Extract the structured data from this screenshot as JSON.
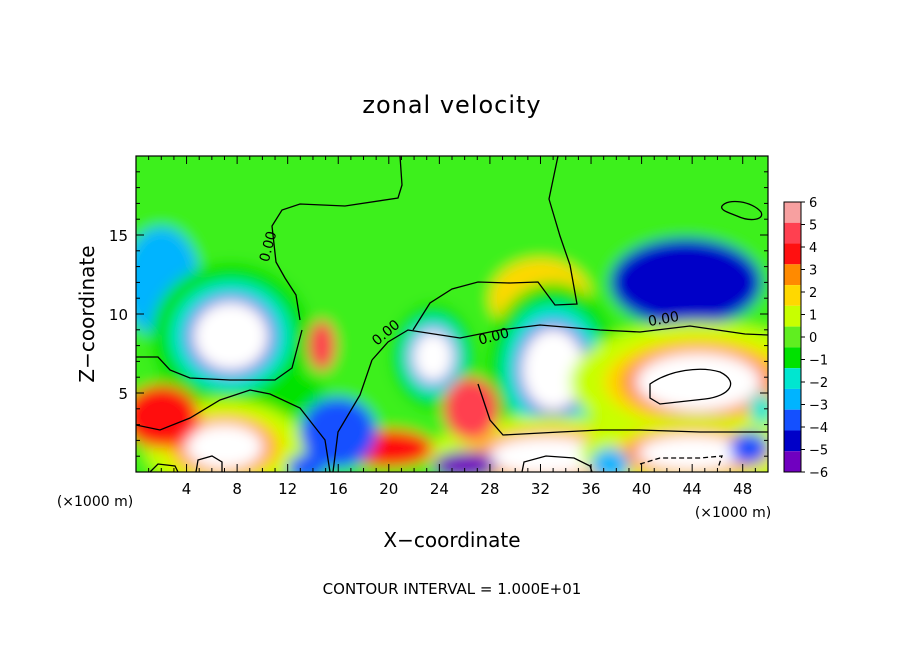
{
  "chart_data": {
    "type": "heatmap",
    "title": "zonal velocity",
    "xlabel": "X−coordinate",
    "ylabel": "Z−coordinate",
    "x_unit_left": "(×1000 m)",
    "x_unit_right": "(×1000 m)",
    "footer": "CONTOUR INTERVAL = 1.000E+01",
    "xlim": [
      0,
      50
    ],
    "ylim": [
      0,
      20
    ],
    "x_ticks": [
      4,
      8,
      12,
      16,
      20,
      24,
      28,
      32,
      36,
      40,
      44,
      48
    ],
    "x_tick_labels": [
      "4",
      "8",
      "12",
      "16",
      "20",
      "24",
      "28",
      "32",
      "36",
      "40",
      "44",
      "48"
    ],
    "y_ticks": [
      5,
      10,
      15
    ],
    "y_tick_labels": [
      "5",
      "10",
      "15"
    ],
    "colorbar": {
      "levels": [
        "6",
        "5",
        "4",
        "3",
        "2",
        "1",
        "0",
        "−1",
        "−2",
        "−3",
        "−4",
        "−5",
        "−6"
      ],
      "colors": [
        "#f7a0a0",
        "#ff4050",
        "#ff1010",
        "#ff8a00",
        "#ffd800",
        "#c8ff00",
        "#60ee20",
        "#00e200",
        "#00e6d0",
        "#00b4ff",
        "#1450ff",
        "#0000c8",
        "#7000c0"
      ]
    },
    "contour_labels": [
      {
        "text": "0.00",
        "x": 10.8,
        "y": 14.2,
        "rotate": -75
      },
      {
        "text": "0.00",
        "x": 20.0,
        "y": 8.6,
        "rotate": -40
      },
      {
        "text": "0.00",
        "x": 28.4,
        "y": 8.3,
        "rotate": -15
      },
      {
        "text": "0.00",
        "x": 41.8,
        "y": 9.4,
        "rotate": -10
      }
    ],
    "fields": [
      {
        "kind": "background",
        "value": 0.3
      },
      {
        "kind": "blob",
        "x": 43.5,
        "y": 12.0,
        "rx": 6,
        "ry": 2.8,
        "value": -4.5
      },
      {
        "kind": "blob",
        "x": 2,
        "y": 12.0,
        "rx": 3,
        "ry": 3.5,
        "value": -2.8
      },
      {
        "kind": "blob",
        "x": 32,
        "y": 11.0,
        "rx": 4,
        "ry": 2.5,
        "value": 1.8
      },
      {
        "kind": "blob",
        "x": 8,
        "y": 5.0,
        "rx": 7,
        "ry": 1.8,
        "value": -1.2
      },
      {
        "kind": "ring",
        "x": 7.5,
        "y": 8.6,
        "rx": 3.0,
        "ry": 2.2,
        "value": -6,
        "halo": -3
      },
      {
        "kind": "ring",
        "x": 23.5,
        "y": 7.3,
        "rx": 1.6,
        "ry": 1.6,
        "value": -6,
        "halo": -3
      },
      {
        "kind": "ring",
        "x": 33.0,
        "y": 6.5,
        "rx": 2.5,
        "ry": 2.6,
        "value": -6,
        "halo": -3
      },
      {
        "kind": "ring",
        "x": 44.5,
        "y": 5.7,
        "rx": 4.8,
        "ry": 1.8,
        "value": 6,
        "halo": 3
      },
      {
        "kind": "blob",
        "x": 14.7,
        "y": 8.0,
        "rx": 1.1,
        "ry": 1.6,
        "value": 5
      },
      {
        "kind": "ring",
        "x": 7.0,
        "y": 1.6,
        "rx": 3.0,
        "ry": 1.4,
        "value": 6,
        "halo": 3
      },
      {
        "kind": "blob",
        "x": 2.0,
        "y": 3.5,
        "rx": 3.0,
        "ry": 2.0,
        "value": 4
      },
      {
        "kind": "ring",
        "x": 32.5,
        "y": 1.0,
        "rx": 4.5,
        "ry": 1.2,
        "value": 6,
        "halo": 3
      },
      {
        "kind": "ring",
        "x": 44.0,
        "y": 1.2,
        "rx": 4.2,
        "ry": 1.1,
        "value": 6,
        "halo": 3
      },
      {
        "kind": "blob",
        "x": 26.5,
        "y": 4.0,
        "rx": 2.2,
        "ry": 2.0,
        "value": 5
      },
      {
        "kind": "blob",
        "x": 20.0,
        "y": 1.5,
        "rx": 3.5,
        "ry": 1.2,
        "value": 4.5
      },
      {
        "kind": "blob",
        "x": 16.0,
        "y": 2.5,
        "rx": 3.0,
        "ry": 2.2,
        "value": -3.5
      },
      {
        "kind": "blob",
        "x": 26.0,
        "y": 0.4,
        "rx": 2.5,
        "ry": 0.9,
        "value": -5.5
      },
      {
        "kind": "blob",
        "x": 48.5,
        "y": 1.5,
        "rx": 1.5,
        "ry": 1.0,
        "value": -4
      },
      {
        "kind": "blob",
        "x": 13.5,
        "y": 0.3,
        "rx": 1.5,
        "ry": 0.8,
        "value": -4
      },
      {
        "kind": "blob",
        "x": 37.5,
        "y": 0.5,
        "rx": 1.5,
        "ry": 1.0,
        "value": -2.5
      },
      {
        "kind": "blob",
        "x": 49.5,
        "y": 4.0,
        "rx": 1.0,
        "ry": 1.0,
        "value": -2
      }
    ]
  }
}
